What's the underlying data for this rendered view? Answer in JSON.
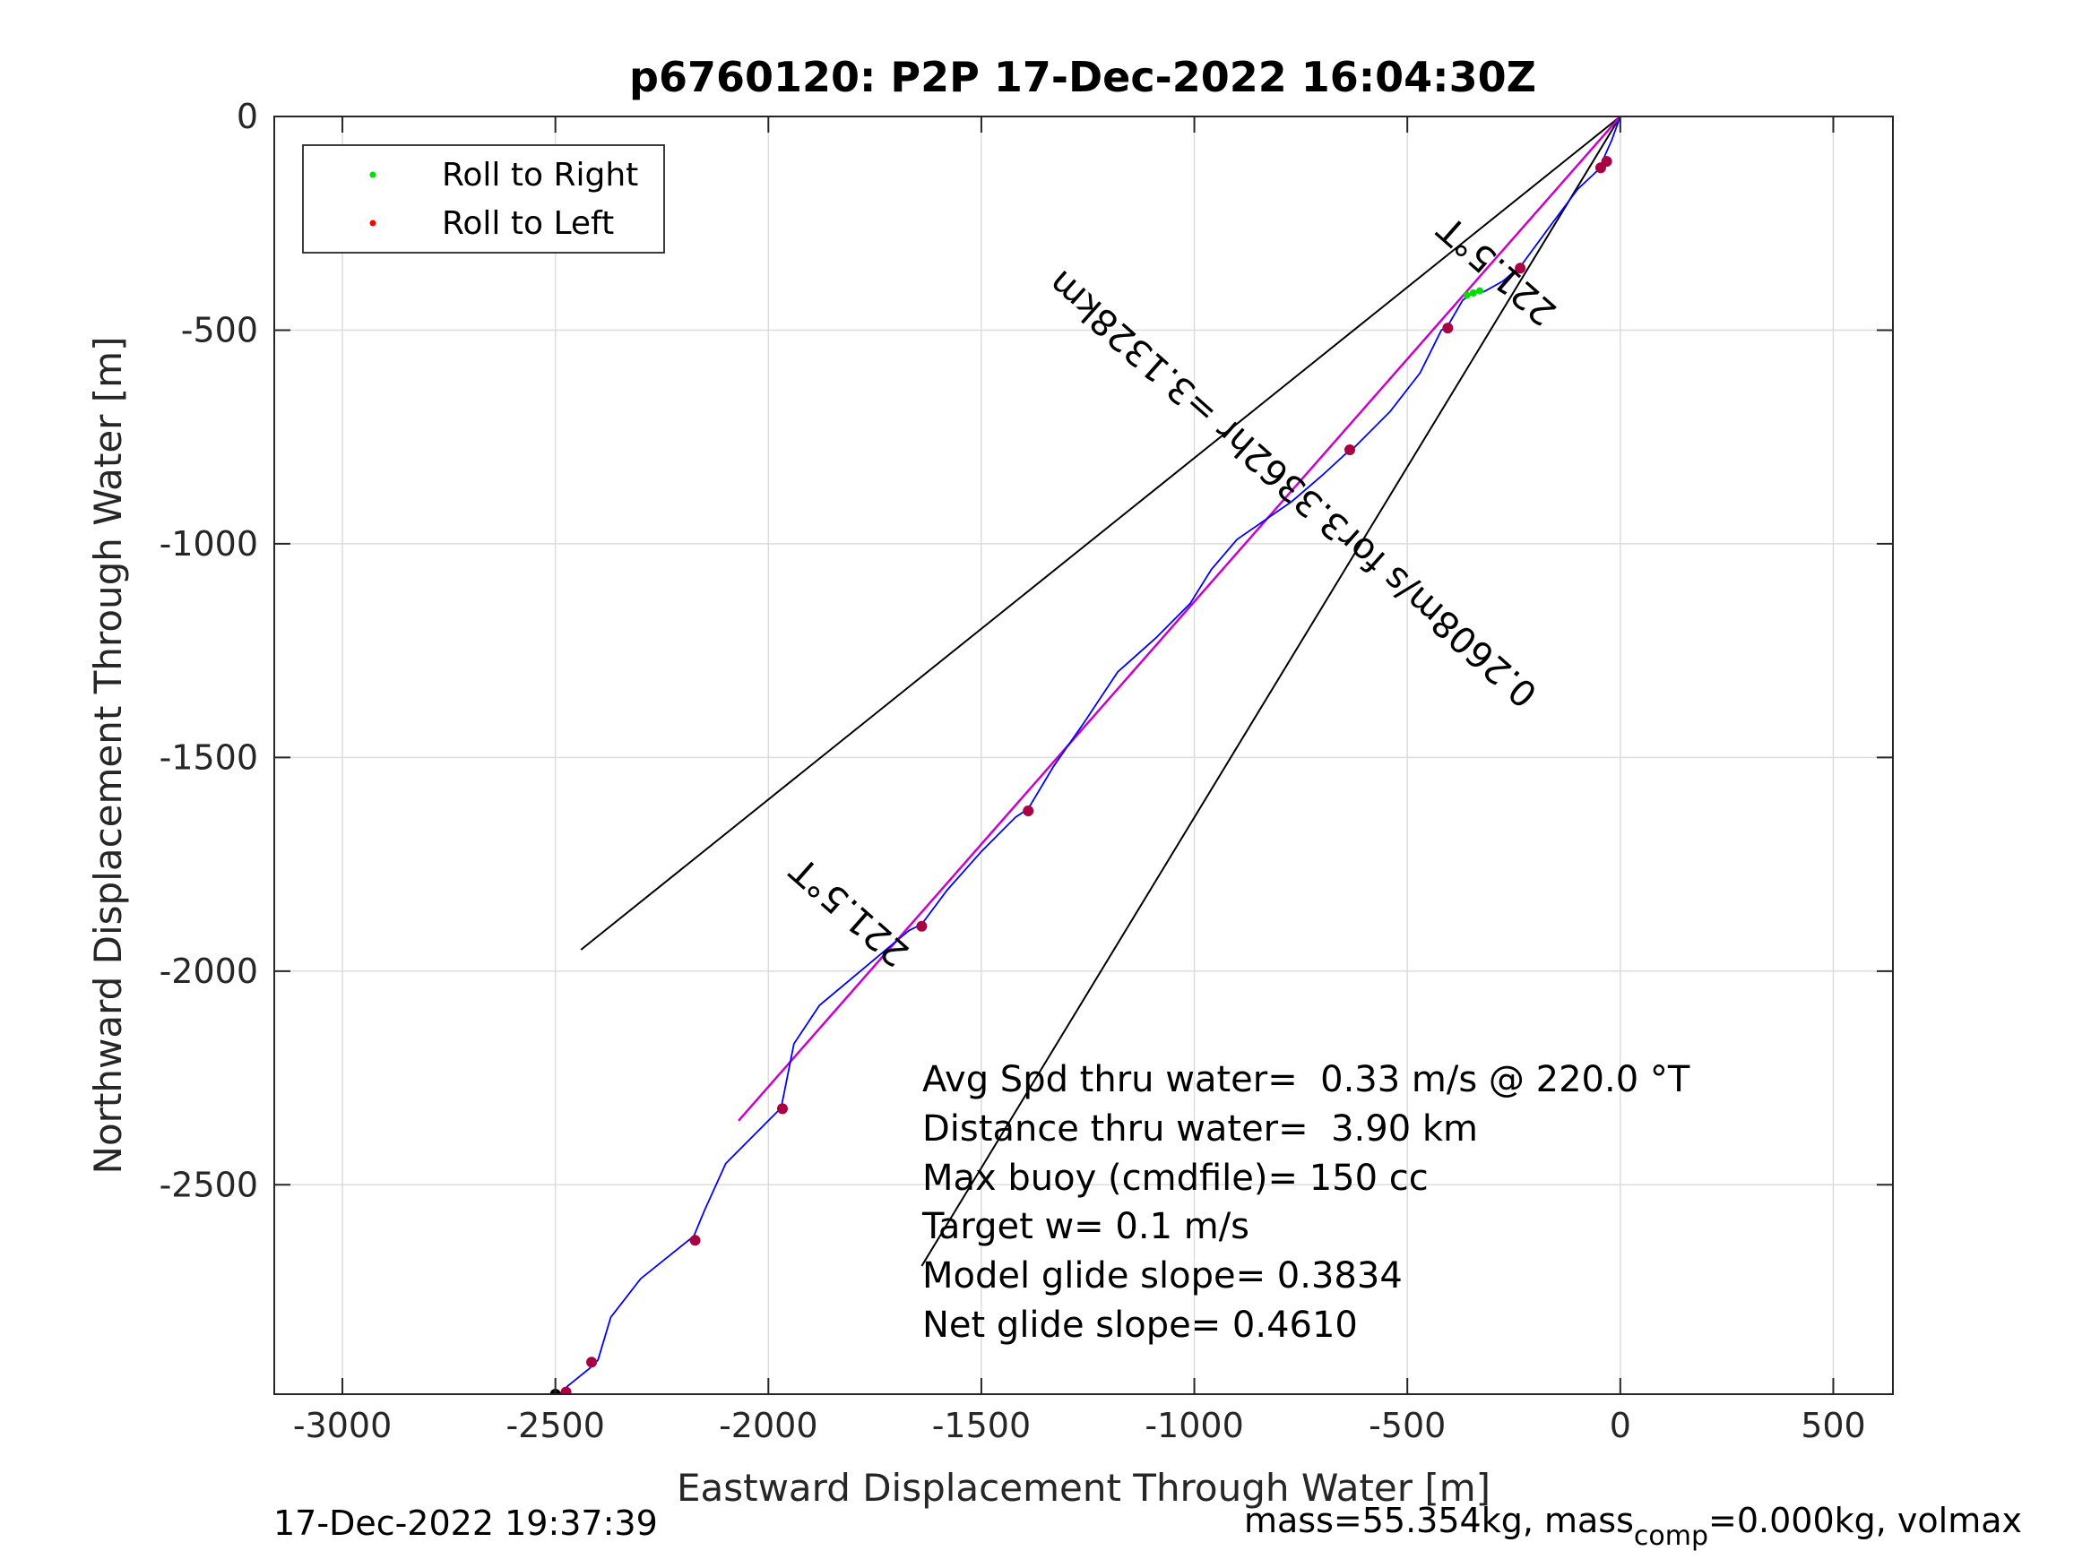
{
  "chart_data": {
    "type": "line",
    "title": "p6760120: P2P 17-Dec-2022 16:04:30Z",
    "xlabel": "Eastward Displacement Through Water [m]",
    "ylabel": "Northward Displacement Through Water [m]",
    "xlim": [
      -3160,
      640
    ],
    "ylim": [
      -2990,
      0
    ],
    "xticks": [
      -3000,
      -2500,
      -2000,
      -1500,
      -1000,
      -500,
      0,
      500
    ],
    "xtick_labels": [
      "-3000",
      "-2500",
      "-2000",
      "-1500",
      "-1000",
      "-500",
      "0",
      "500"
    ],
    "yticks": [
      0,
      -500,
      -1000,
      -1500,
      -2000,
      -2500
    ],
    "ytick_labels": [
      "0",
      "-500",
      "-1000",
      "-1500",
      "-2000",
      "-2500"
    ],
    "grid": true,
    "legend": {
      "position": "top-left",
      "entries": [
        {
          "label": "Roll to Right",
          "color": "#00dd00"
        },
        {
          "label": "Roll to Left",
          "color": "#ff0000"
        }
      ]
    },
    "colors": {
      "track": "#0000ff",
      "fit_line": "#cc00cc",
      "roll_right": "#00dd00",
      "roll_left": "#ff0000",
      "dive_marker": "#aa0044",
      "heading_lines": "#000000"
    },
    "track": [
      [
        0,
        0
      ],
      [
        -20,
        -55
      ],
      [
        -40,
        -100
      ],
      [
        -48,
        -118
      ],
      [
        -55,
        -128
      ],
      [
        -100,
        -170
      ],
      [
        -160,
        -250
      ],
      [
        -230,
        -345
      ],
      [
        -240,
        -355
      ],
      [
        -275,
        -385
      ],
      [
        -320,
        -410
      ],
      [
        -345,
        -412
      ],
      [
        -370,
        -430
      ],
      [
        -405,
        -490
      ],
      [
        -420,
        -500
      ],
      [
        -470,
        -600
      ],
      [
        -540,
        -690
      ],
      [
        -630,
        -780
      ],
      [
        -640,
        -785
      ],
      [
        -700,
        -840
      ],
      [
        -770,
        -900
      ],
      [
        -900,
        -990
      ],
      [
        -960,
        -1060
      ],
      [
        -1010,
        -1140
      ],
      [
        -1090,
        -1220
      ],
      [
        -1180,
        -1300
      ],
      [
        -1260,
        -1420
      ],
      [
        -1330,
        -1520
      ],
      [
        -1390,
        -1620
      ],
      [
        -1420,
        -1640
      ],
      [
        -1500,
        -1720
      ],
      [
        -1580,
        -1810
      ],
      [
        -1640,
        -1890
      ],
      [
        -1670,
        -1905
      ],
      [
        -1760,
        -1980
      ],
      [
        -1880,
        -2080
      ],
      [
        -1940,
        -2170
      ],
      [
        -1960,
        -2270
      ],
      [
        -1970,
        -2320
      ],
      [
        -2010,
        -2360
      ],
      [
        -2100,
        -2450
      ],
      [
        -2150,
        -2560
      ],
      [
        -2175,
        -2620
      ],
      [
        -2200,
        -2640
      ],
      [
        -2300,
        -2720
      ],
      [
        -2370,
        -2810
      ],
      [
        -2400,
        -2910
      ],
      [
        -2420,
        -2930
      ],
      [
        -2470,
        -2970
      ],
      [
        -2490,
        -2990
      ]
    ],
    "dive_markers": [
      [
        -32,
        -105
      ],
      [
        -46,
        -120
      ],
      [
        -235,
        -355
      ],
      [
        -405,
        -495
      ],
      [
        -635,
        -780
      ],
      [
        -1390,
        -1625
      ],
      [
        -1640,
        -1895
      ],
      [
        -1967,
        -2322
      ],
      [
        -2172,
        -2630
      ],
      [
        -2415,
        -2915
      ],
      [
        -2475,
        -2985
      ],
      [
        -2500,
        -2990
      ]
    ],
    "roll_right_points": [
      [
        -330,
        -408
      ],
      [
        -345,
        -413
      ],
      [
        -360,
        -418
      ]
    ],
    "fit_line": [
      [
        0,
        0
      ],
      [
        -2070,
        -2350
      ]
    ],
    "heading_lines": [
      [
        [
          0,
          0
        ],
        [
          -2440,
          -1950
        ]
      ],
      [
        [
          0,
          0
        ],
        [
          -1640,
          -2690
        ]
      ]
    ],
    "annotations": [
      {
        "text": "221.5°T",
        "x": -270,
        "y": -340,
        "rotate": 221.5
      },
      {
        "text": "0.2608m/s for3.3362hr =3.1328km",
        "x": -750,
        "y": -850,
        "rotate": 221.5
      },
      {
        "text": "221.5°T",
        "x": -1790,
        "y": -1840,
        "rotate": 221.5
      }
    ],
    "stats": [
      "Avg Spd thru water=  0.33 m/s @ 220.0 °T",
      "Distance thru water=  3.90 km",
      "Max buoy (cmdfile)= 150 cc",
      "Target w= 0.1 m/s",
      "Model glide slope= 0.3834",
      "Net glide slope= 0.4610"
    ],
    "footer": {
      "timestamp": "17-Dec-2022 19:37:39",
      "mass_text": "mass=55.354kg, mass",
      "mass_subscript": "comp",
      "mass_rest": "=0.000kg, volmax"
    }
  }
}
